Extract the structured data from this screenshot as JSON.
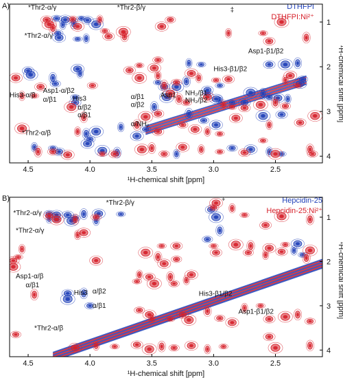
{
  "colors": {
    "blue": "#1f3fb8",
    "red": "#d6202a",
    "leader": "#d6202a",
    "green": "#2e7d32",
    "frame": "#000000"
  },
  "chart_data": [
    {
      "type": "heatmap",
      "panel_label": "A)",
      "legend": [
        "DTHFPI",
        "DTHFPI:Ni²⁺"
      ],
      "xlabel": "¹H-chemical shift [ppm]",
      "ylabel": "¹H-chemical shift [ppm]",
      "xlim": [
        4.65,
        2.12
      ],
      "ylim": [
        0.6,
        4.15
      ],
      "x_ticks": [
        "4.5",
        "4.0",
        "3.5",
        "3.0",
        "2.5"
      ],
      "x_tick_values": [
        4.5,
        4.0,
        3.5,
        3.0,
        2.5
      ],
      "y_ticks": [
        "1",
        "2",
        "3",
        "4"
      ],
      "y_tick_values": [
        1,
        2,
        3,
        4
      ],
      "symbol": {
        "x": 2.85,
        "y": 0.78,
        "text": "‡"
      },
      "annotations": [
        {
          "text": "*Thr2-α/γ",
          "x": 4.5,
          "y": 0.72
        },
        {
          "text": "*Thr2-β/γ",
          "x": 3.78,
          "y": 0.72
        },
        {
          "text": "*Thr2-α/γ",
          "x": 4.53,
          "y": 1.35
        },
        {
          "text": "Asp1-β1/β2",
          "x": 2.72,
          "y": 1.7
        },
        {
          "text": "His3-β1/β2",
          "x": 3.0,
          "y": 2.1
        },
        {
          "text": "Asp1-α/β2",
          "x": 4.38,
          "y": 2.58
        },
        {
          "text": "His3-α/β",
          "x": 4.65,
          "y": 2.68
        },
        {
          "text": "α/β1",
          "x": 4.38,
          "y": 2.78
        },
        {
          "text": "His3",
          "x": 4.14,
          "y": 2.76
        },
        {
          "text": "Asp1",
          "x": 3.43,
          "y": 2.68
        },
        {
          "text": "NH₂/β1",
          "x": 3.23,
          "y": 2.64
        },
        {
          "text": "NH₂/β2",
          "x": 3.23,
          "y": 2.8
        },
        {
          "text": "α/β1",
          "x": 3.67,
          "y": 2.72
        },
        {
          "text": "α/β2",
          "x": 3.67,
          "y": 2.9
        },
        {
          "text": "α/β2",
          "x": 4.1,
          "y": 2.96
        },
        {
          "text": "α/β1",
          "x": 4.1,
          "y": 3.13
        },
        {
          "text": "α/NH₂",
          "x": 3.67,
          "y": 3.33
        },
        {
          "text": "*Thr2-α/β",
          "x": 4.55,
          "y": 3.53
        }
      ],
      "peaks": {
        "blue": [
          [
            4.27,
            0.92
          ],
          [
            4.2,
            0.95
          ],
          [
            4.22,
            1.06
          ],
          [
            4.07,
            0.92
          ],
          [
            4.02,
            0.96
          ],
          [
            3.95,
            1.05
          ],
          [
            4.13,
            1.03
          ],
          [
            4.26,
            1.25
          ],
          [
            4.25,
            1.35
          ],
          [
            4.03,
            1.37
          ],
          [
            4.1,
            1.38
          ],
          [
            4.5,
            2.09
          ],
          [
            4.48,
            2.18
          ],
          [
            4.3,
            2.25
          ],
          [
            4.28,
            2.38
          ],
          [
            4.1,
            2.05
          ],
          [
            4.08,
            2.15
          ],
          [
            4.12,
            2.68
          ],
          [
            4.12,
            2.8
          ],
          [
            3.95,
            3.45
          ],
          [
            4.03,
            3.5
          ],
          [
            4.0,
            3.62
          ],
          [
            4.02,
            3.72
          ],
          [
            3.75,
            3.35
          ],
          [
            3.45,
            2.35
          ],
          [
            3.4,
            2.45
          ],
          [
            3.3,
            2.45
          ],
          [
            3.22,
            2.33
          ],
          [
            3.05,
            2.6
          ],
          [
            2.98,
            2.72
          ],
          [
            2.95,
            2.75
          ],
          [
            2.85,
            2.8
          ],
          [
            2.75,
            2.8
          ],
          [
            2.7,
            2.58
          ],
          [
            2.6,
            2.6
          ],
          [
            2.55,
            2.68
          ],
          [
            2.48,
            2.7
          ],
          [
            2.4,
            2.72
          ],
          [
            2.95,
            2.42
          ],
          [
            3.05,
            2.52
          ],
          [
            3.38,
            2.68
          ],
          [
            3.48,
            2.9
          ],
          [
            3.08,
            3.2
          ],
          [
            2.98,
            3.3
          ],
          [
            3.2,
            1.92
          ],
          [
            3.1,
            1.95
          ],
          [
            2.55,
            1.95
          ],
          [
            2.42,
            1.95
          ],
          [
            2.32,
            1.92
          ],
          [
            2.28,
            2.28
          ],
          [
            2.3,
            2.38
          ],
          [
            4.45,
            3.8
          ],
          [
            4.3,
            3.82
          ],
          [
            4.25,
            3.9
          ],
          [
            3.9,
            3.88
          ],
          [
            3.78,
            3.92
          ],
          [
            2.85,
            3.82
          ],
          [
            2.7,
            3.85
          ],
          [
            2.55,
            3.9
          ],
          [
            2.45,
            3.95
          ],
          [
            2.45,
            3.07
          ],
          [
            2.6,
            3.1
          ],
          [
            3.2,
            3.05
          ],
          [
            3.55,
            3.4
          ],
          [
            3.62,
            3.55
          ],
          [
            3.3,
            3.95
          ]
        ],
        "red": [
          [
            4.35,
            0.95
          ],
          [
            4.33,
            1.05
          ],
          [
            4.3,
            1.13
          ],
          [
            4.14,
            0.94
          ],
          [
            4.1,
            1.1
          ],
          [
            3.92,
            0.95
          ],
          [
            3.88,
            1.2
          ],
          [
            3.85,
            1.32
          ],
          [
            3.73,
            1.22
          ],
          [
            3.72,
            1.32
          ],
          [
            3.35,
            0.95
          ],
          [
            3.42,
            1.1
          ],
          [
            2.88,
            1.25
          ],
          [
            2.6,
            1.25
          ],
          [
            2.55,
            1.43
          ],
          [
            2.45,
            1.0
          ],
          [
            2.25,
            1.35
          ],
          [
            3.45,
            1.85
          ],
          [
            3.48,
            2.03
          ],
          [
            3.45,
            2.2
          ],
          [
            3.6,
            1.97
          ],
          [
            3.68,
            2.08
          ],
          [
            3.6,
            2.25
          ],
          [
            3.4,
            2.42
          ],
          [
            3.3,
            2.35
          ],
          [
            3.18,
            2.15
          ],
          [
            3.12,
            2.25
          ],
          [
            2.98,
            2.3
          ],
          [
            2.88,
            2.28
          ],
          [
            3.35,
            2.6
          ],
          [
            3.28,
            2.72
          ],
          [
            3.22,
            2.8
          ],
          [
            3.05,
            2.68
          ],
          [
            2.92,
            2.85
          ],
          [
            2.85,
            2.9
          ],
          [
            2.75,
            2.92
          ],
          [
            2.62,
            2.85
          ],
          [
            2.5,
            2.8
          ],
          [
            2.42,
            2.88
          ],
          [
            2.38,
            2.2
          ],
          [
            2.42,
            2.3
          ],
          [
            2.32,
            2.42
          ],
          [
            3.45,
            3.05
          ],
          [
            3.55,
            3.12
          ],
          [
            3.62,
            3.3
          ],
          [
            3.25,
            3.3
          ],
          [
            3.15,
            3.4
          ],
          [
            3.05,
            3.45
          ],
          [
            2.95,
            3.5
          ],
          [
            3.45,
            3.45
          ],
          [
            4.55,
            3.38
          ],
          [
            4.42,
            3.9
          ],
          [
            4.3,
            3.9
          ],
          [
            4.18,
            3.97
          ],
          [
            4.1,
            3.45
          ],
          [
            3.9,
            3.95
          ],
          [
            3.8,
            3.95
          ],
          [
            3.58,
            3.85
          ],
          [
            3.5,
            3.82
          ],
          [
            3.4,
            3.95
          ],
          [
            3.25,
            3.8
          ],
          [
            3.1,
            3.85
          ],
          [
            2.95,
            3.9
          ],
          [
            2.75,
            3.92
          ],
          [
            2.5,
            3.95
          ],
          [
            2.22,
            3.85
          ],
          [
            2.2,
            3.95
          ],
          [
            4.6,
            2.25
          ],
          [
            4.55,
            2.65
          ],
          [
            4.45,
            2.65
          ],
          [
            4.4,
            2.45
          ],
          [
            4.15,
            2.9
          ],
          [
            4.05,
            3.13
          ],
          [
            3.98,
            2.42
          ],
          [
            2.82,
            3.15
          ],
          [
            2.55,
            3.3
          ],
          [
            2.6,
            3.65
          ],
          [
            2.3,
            3.25
          ],
          [
            2.18,
            3.1
          ]
        ]
      },
      "diagonal": {
        "from": [
          3.55,
          3.42
        ],
        "to": [
          2.25,
          2.3
        ]
      }
    },
    {
      "type": "heatmap",
      "panel_label": "B)",
      "legend": [
        "Hepcidin-25",
        "Hepcidin-25:Ni²⁺"
      ],
      "xlabel": "¹H-chemical shift [ppm]",
      "ylabel": "¹H-chemical shift [ppm]",
      "xlim": [
        4.65,
        2.12
      ],
      "ylim": [
        0.55,
        4.15
      ],
      "x_ticks": [
        "4.5",
        "4.0",
        "3.5",
        "3.0",
        "2.5"
      ],
      "x_tick_values": [
        4.5,
        4.0,
        3.5,
        3.0,
        2.5
      ],
      "y_ticks": [
        "1",
        "2",
        "3",
        "4"
      ],
      "y_tick_values": [
        1,
        2,
        3,
        4
      ],
      "symbol": {
        "x": 2.92,
        "y": 0.62,
        "text": "‡"
      },
      "annotations": [
        {
          "text": "*Thr2-β/γ",
          "x": 3.87,
          "y": 0.72
        },
        {
          "text": "*Thr2-α/γ",
          "x": 4.62,
          "y": 0.95
        },
        {
          "text": "*Thr2-α/γ",
          "x": 4.6,
          "y": 1.35
        },
        {
          "text": "Asp1-α/β",
          "x": 4.6,
          "y": 2.38
        },
        {
          "text": "α/β1",
          "x": 4.52,
          "y": 2.58
        },
        {
          "text": "His3",
          "x": 4.13,
          "y": 2.75
        },
        {
          "text": "α/β2",
          "x": 3.98,
          "y": 2.72
        },
        {
          "text": "α/β1",
          "x": 3.98,
          "y": 3.05
        },
        {
          "text": "His3-β1/β2",
          "x": 3.12,
          "y": 2.78
        },
        {
          "text": "Asp1-β1/β2",
          "x": 2.8,
          "y": 3.18
        },
        {
          "text": "*Thr2-α/β",
          "x": 4.45,
          "y": 3.55
        }
      ],
      "peaks": {
        "blue": [
          [
            4.33,
            0.92
          ],
          [
            4.27,
            0.95
          ],
          [
            4.33,
            1.03
          ],
          [
            4.27,
            1.05
          ],
          [
            4.18,
            0.95
          ],
          [
            4.15,
            1.08
          ],
          [
            4.05,
            0.93
          ],
          [
            4.12,
            1.02
          ],
          [
            3.93,
            0.92
          ],
          [
            3.95,
            1.08
          ],
          [
            3.75,
            0.93
          ],
          [
            4.18,
            2.72
          ],
          [
            4.18,
            2.85
          ],
          [
            4.05,
            2.72
          ],
          [
            4.0,
            3.0
          ],
          [
            2.32,
            1.6
          ],
          [
            2.35,
            1.75
          ],
          [
            2.28,
            1.85
          ],
          [
            3.02,
            0.83
          ],
          [
            2.98,
            1.0
          ],
          [
            2.95,
            1.3
          ],
          [
            3.05,
            1.5
          ]
        ],
        "red": [
          [
            4.33,
            0.97
          ],
          [
            4.27,
            1.05
          ],
          [
            4.12,
            1.05
          ],
          [
            3.95,
            1.0
          ],
          [
            4.05,
            1.35
          ],
          [
            4.1,
            1.4
          ],
          [
            3.42,
            1.65
          ],
          [
            3.3,
            1.65
          ],
          [
            3.55,
            1.8
          ],
          [
            3.45,
            1.9
          ],
          [
            3.3,
            1.95
          ],
          [
            3.4,
            2.05
          ],
          [
            3.6,
            2.3
          ],
          [
            3.62,
            2.45
          ],
          [
            3.52,
            2.35
          ],
          [
            3.48,
            2.5
          ],
          [
            3.35,
            2.35
          ],
          [
            3.32,
            2.5
          ],
          [
            3.18,
            2.3
          ],
          [
            3.22,
            2.42
          ],
          [
            3.0,
            1.65
          ],
          [
            2.98,
            1.8
          ],
          [
            2.82,
            1.62
          ],
          [
            2.7,
            1.65
          ],
          [
            2.72,
            1.8
          ],
          [
            2.55,
            1.7
          ],
          [
            2.58,
            1.85
          ],
          [
            2.42,
            1.62
          ],
          [
            2.45,
            1.78
          ],
          [
            2.22,
            1.75
          ],
          [
            2.25,
            1.92
          ],
          [
            3.0,
            0.78
          ],
          [
            2.98,
            0.68
          ],
          [
            2.85,
            0.8
          ],
          [
            2.75,
            0.95
          ],
          [
            2.58,
            1.18
          ],
          [
            2.45,
            0.98
          ],
          [
            2.22,
            1.05
          ],
          [
            3.6,
            3.1
          ],
          [
            3.52,
            3.2
          ],
          [
            3.5,
            3.28
          ],
          [
            3.35,
            3.3
          ],
          [
            3.25,
            3.2
          ],
          [
            3.2,
            3.32
          ],
          [
            3.05,
            3.12
          ],
          [
            2.95,
            3.28
          ],
          [
            2.85,
            3.38
          ],
          [
            2.75,
            3.05
          ],
          [
            2.62,
            3.0
          ],
          [
            2.55,
            3.3
          ],
          [
            2.42,
            3.25
          ],
          [
            2.32,
            3.2
          ],
          [
            2.22,
            3.35
          ],
          [
            3.95,
            1.98
          ],
          [
            4.55,
            1.72
          ],
          [
            4.58,
            1.9
          ],
          [
            4.62,
            1.98
          ],
          [
            4.62,
            2.12
          ],
          [
            4.45,
            2.75
          ],
          [
            4.6,
            3.65
          ],
          [
            4.12,
            3.95
          ],
          [
            3.95,
            3.9
          ],
          [
            3.8,
            3.92
          ],
          [
            3.62,
            3.88
          ],
          [
            3.52,
            3.98
          ],
          [
            3.42,
            3.92
          ],
          [
            3.32,
            3.95
          ],
          [
            3.18,
            3.9
          ],
          [
            3.05,
            3.98
          ],
          [
            2.92,
            3.92
          ],
          [
            2.55,
            3.7
          ],
          [
            2.5,
            3.95
          ],
          [
            2.22,
            3.9
          ]
        ]
      },
      "diagonal": {
        "from": [
          4.3,
          4.15
        ],
        "to": [
          2.12,
          2.05
        ]
      }
    }
  ]
}
